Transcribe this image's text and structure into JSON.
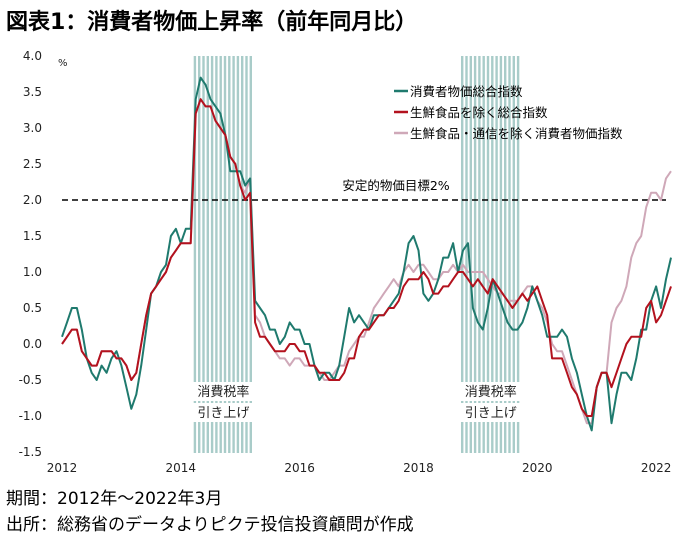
{
  "title": "図表1：消費者物価上昇率（前年同月比）",
  "footer": {
    "period": "期間：2012年～2022年3月",
    "source": "出所：総務省のデータよりピクテ投信投資顧問が作成"
  },
  "chart_data": {
    "type": "line",
    "unit_label": "%",
    "ylim": [
      -1.5,
      4.0
    ],
    "y_ticks": [
      "4.0",
      "3.5",
      "3.0",
      "2.5",
      "2.0",
      "1.5",
      "1.0",
      "0.5",
      "0.0",
      "-0.5",
      "-1.0",
      "-1.5"
    ],
    "x_ticks": [
      "2012",
      "2014",
      "2016",
      "2018",
      "2020",
      "2022"
    ],
    "x_range": [
      "2012-01",
      "2022-03"
    ],
    "legend_position": "top-right",
    "colors": {
      "headline": "#1f7a6e",
      "core": "#b3121e",
      "core_ex_telecom": "#cfa8b8",
      "shade": "#a9ccc9"
    },
    "target_line": {
      "value": 2.0,
      "label": "安定的物価目標2%"
    },
    "tax_hike_periods": [
      {
        "start": "2014-04",
        "end": "2015-03",
        "label_lines": [
          "消費税率",
          "引き上げ"
        ]
      },
      {
        "start": "2018-10",
        "end": "2019-09",
        "label_lines": [
          "消費税率",
          "引き上げ"
        ]
      }
    ],
    "series": [
      {
        "name": "消費者物価総合指数",
        "key": "headline",
        "start": "2012-01",
        "values": [
          0.1,
          0.3,
          0.5,
          0.5,
          0.2,
          -0.2,
          -0.4,
          -0.5,
          -0.3,
          -0.4,
          -0.2,
          -0.1,
          -0.3,
          -0.6,
          -0.9,
          -0.7,
          -0.3,
          0.2,
          0.7,
          0.8,
          1.0,
          1.1,
          1.5,
          1.6,
          1.4,
          1.6,
          1.6,
          3.4,
          3.7,
          3.6,
          3.4,
          3.3,
          3.2,
          2.9,
          2.4,
          2.4,
          2.4,
          2.2,
          2.3,
          0.6,
          0.5,
          0.4,
          0.2,
          0.2,
          0.0,
          0.1,
          0.3,
          0.2,
          0.2,
          0.0,
          0.0,
          -0.3,
          -0.5,
          -0.4,
          -0.4,
          -0.5,
          -0.3,
          0.1,
          0.5,
          0.3,
          0.4,
          0.3,
          0.2,
          0.4,
          0.4,
          0.4,
          0.5,
          0.6,
          0.7,
          1.0,
          1.4,
          1.5,
          1.3,
          0.7,
          0.6,
          0.7,
          0.9,
          1.2,
          1.2,
          1.4,
          1.0,
          1.3,
          1.4,
          0.5,
          0.3,
          0.2,
          0.5,
          0.9,
          0.7,
          0.5,
          0.3,
          0.2,
          0.2,
          0.3,
          0.5,
          0.8,
          0.6,
          0.4,
          0.1,
          0.1,
          0.1,
          0.2,
          0.1,
          -0.2,
          -0.4,
          -0.7,
          -1.0,
          -1.2,
          -0.6,
          -0.4,
          -0.4,
          -1.1,
          -0.7,
          -0.4,
          -0.4,
          -0.5,
          -0.2,
          0.2,
          0.2,
          0.6,
          0.8,
          0.5,
          0.9,
          1.2
        ]
      },
      {
        "name": "生鮮食品を除く総合指数",
        "key": "core",
        "start": "2012-01",
        "values": [
          0.0,
          0.1,
          0.2,
          0.2,
          -0.1,
          -0.2,
          -0.3,
          -0.3,
          -0.1,
          -0.1,
          -0.1,
          -0.2,
          -0.2,
          -0.3,
          -0.5,
          -0.4,
          0.0,
          0.4,
          0.7,
          0.8,
          0.9,
          1.0,
          1.2,
          1.3,
          1.4,
          1.4,
          1.4,
          3.2,
          3.4,
          3.3,
          3.3,
          3.1,
          3.0,
          2.9,
          2.6,
          2.5,
          2.2,
          2.0,
          2.1,
          0.3,
          0.1,
          0.1,
          0.0,
          -0.1,
          -0.1,
          -0.1,
          0.0,
          0.0,
          -0.1,
          -0.1,
          -0.3,
          -0.3,
          -0.4,
          -0.4,
          -0.5,
          -0.5,
          -0.5,
          -0.4,
          -0.2,
          -0.2,
          0.1,
          0.2,
          0.2,
          0.3,
          0.4,
          0.4,
          0.5,
          0.5,
          0.6,
          0.8,
          0.9,
          0.9,
          0.9,
          1.0,
          0.9,
          0.7,
          0.7,
          0.8,
          0.8,
          0.9,
          1.0,
          1.0,
          0.9,
          0.8,
          0.9,
          0.8,
          0.7,
          0.9,
          0.8,
          0.7,
          0.6,
          0.5,
          0.6,
          0.7,
          0.6,
          0.7,
          0.8,
          0.6,
          0.4,
          -0.2,
          -0.2,
          -0.2,
          -0.4,
          -0.6,
          -0.7,
          -0.9,
          -1.0,
          -1.0,
          -0.6,
          -0.4,
          -0.4,
          -0.6,
          -0.4,
          -0.2,
          0.0,
          0.1,
          0.1,
          0.1,
          0.5,
          0.6,
          0.3,
          0.4,
          0.6,
          0.8
        ]
      },
      {
        "name": "生鮮食品・通信を除く消費者物価指数",
        "key": "core_ex_telecom",
        "start": "2012-01",
        "values": [
          0.0,
          0.1,
          0.2,
          0.2,
          -0.1,
          -0.2,
          -0.3,
          -0.3,
          -0.1,
          -0.1,
          -0.1,
          -0.2,
          -0.2,
          -0.3,
          -0.5,
          -0.4,
          0.0,
          0.4,
          0.7,
          0.8,
          0.9,
          1.0,
          1.2,
          1.3,
          1.4,
          1.4,
          1.4,
          3.2,
          3.4,
          3.3,
          3.3,
          3.1,
          3.0,
          2.9,
          2.6,
          2.5,
          2.2,
          2.1,
          2.3,
          0.4,
          0.3,
          0.1,
          0.0,
          -0.1,
          -0.2,
          -0.2,
          -0.3,
          -0.2,
          -0.2,
          -0.3,
          -0.3,
          -0.3,
          -0.4,
          -0.5,
          -0.5,
          -0.4,
          -0.3,
          -0.3,
          -0.1,
          0.0,
          0.1,
          0.1,
          0.3,
          0.5,
          0.6,
          0.7,
          0.8,
          0.9,
          0.8,
          1.0,
          1.1,
          1.0,
          1.1,
          1.1,
          1.0,
          0.9,
          0.9,
          1.0,
          1.0,
          1.1,
          1.0,
          1.1,
          1.0,
          1.0,
          1.0,
          1.0,
          0.9,
          0.8,
          0.7,
          0.7,
          0.6,
          0.6,
          0.6,
          0.7,
          0.8,
          0.8,
          0.6,
          0.5,
          0.3,
          0.0,
          -0.1,
          -0.1,
          -0.3,
          -0.5,
          -0.7,
          -0.9,
          -1.1,
          -1.1,
          -0.6,
          -0.4,
          -0.4,
          0.3,
          0.5,
          0.6,
          0.8,
          1.2,
          1.4,
          1.5,
          1.9,
          2.1,
          2.1,
          2.0,
          2.3,
          2.4
        ]
      }
    ]
  }
}
